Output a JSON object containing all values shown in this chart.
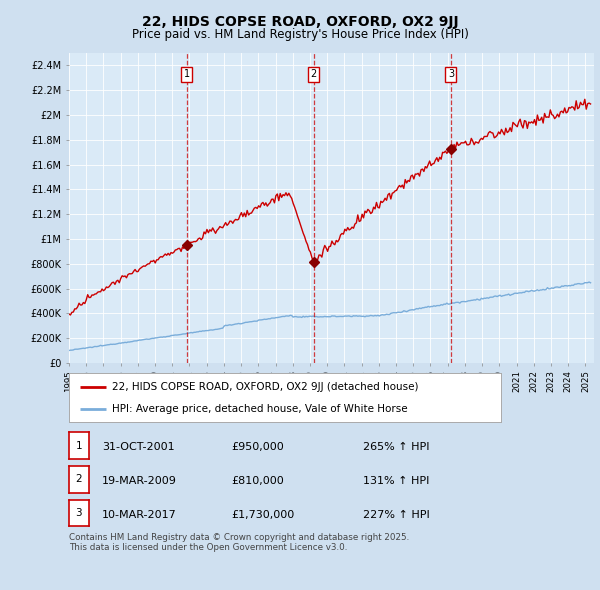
{
  "title": "22, HIDS COPSE ROAD, OXFORD, OX2 9JJ",
  "subtitle": "Price paid vs. HM Land Registry's House Price Index (HPI)",
  "title_fontsize": 10,
  "subtitle_fontsize": 8.5,
  "background_color": "#cfe0f0",
  "plot_bg_color": "#daeaf7",
  "ylim": [
    0,
    2500000
  ],
  "yticks": [
    0,
    200000,
    400000,
    600000,
    800000,
    1000000,
    1200000,
    1400000,
    1600000,
    1800000,
    2000000,
    2200000,
    2400000
  ],
  "ytick_labels": [
    "£0",
    "£200K",
    "£400K",
    "£600K",
    "£800K",
    "£1M",
    "£1.2M",
    "£1.4M",
    "£1.6M",
    "£1.8M",
    "£2M",
    "£2.2M",
    "£2.4M"
  ],
  "xlim_start": 1995.0,
  "xlim_end": 2025.5,
  "red_line_color": "#cc0000",
  "blue_line_color": "#7aadda",
  "transaction_line_color": "#cc0000",
  "marker_color": "#880000",
  "transactions": [
    {
      "id": 1,
      "year": 2001.83,
      "price": 950000,
      "label": "31-OCT-2001",
      "amount": "£950,000",
      "pct": "265% ↑ HPI"
    },
    {
      "id": 2,
      "year": 2009.21,
      "price": 810000,
      "label": "19-MAR-2009",
      "amount": "£810,000",
      "pct": "131% ↑ HPI"
    },
    {
      "id": 3,
      "year": 2017.19,
      "price": 1730000,
      "label": "10-MAR-2017",
      "amount": "£1,730,000",
      "pct": "227% ↑ HPI"
    }
  ],
  "legend_line1": "22, HIDS COPSE ROAD, OXFORD, OX2 9JJ (detached house)",
  "legend_line2": "HPI: Average price, detached house, Vale of White Horse",
  "footer": "Contains HM Land Registry data © Crown copyright and database right 2025.\nThis data is licensed under the Open Government Licence v3.0."
}
